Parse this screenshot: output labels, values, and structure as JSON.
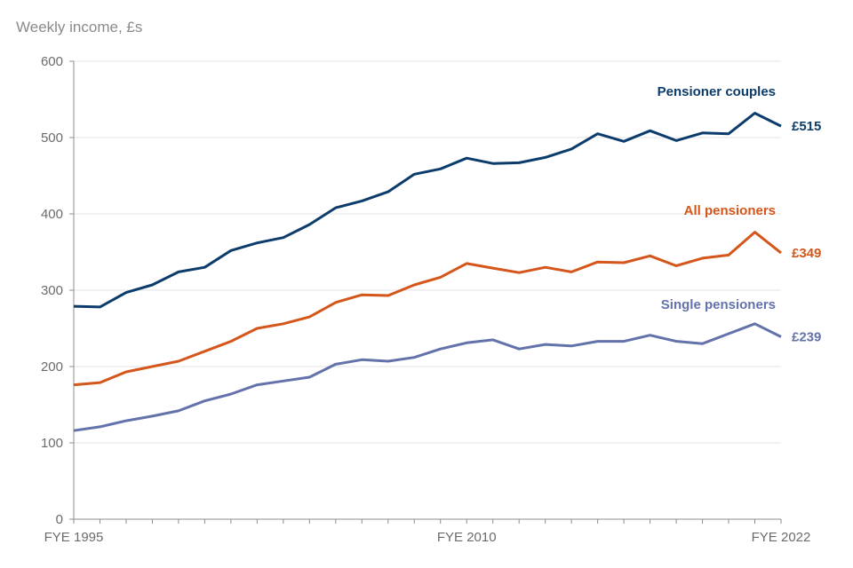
{
  "chart_data": {
    "type": "line",
    "ylabel": "Weekly income, £s",
    "ylim": [
      0,
      600
    ],
    "yticks": [
      0,
      100,
      200,
      300,
      400,
      500,
      600
    ],
    "x": [
      1995,
      1996,
      1997,
      1998,
      1999,
      2000,
      2001,
      2002,
      2003,
      2004,
      2005,
      2006,
      2007,
      2008,
      2009,
      2010,
      2011,
      2012,
      2013,
      2014,
      2015,
      2016,
      2017,
      2018,
      2019,
      2020,
      2021,
      2022
    ],
    "xtick_labels": [
      {
        "x": 1995,
        "label": "FYE 1995"
      },
      {
        "x": 2010,
        "label": "FYE 2010"
      },
      {
        "x": 2022,
        "label": "FYE 2022"
      }
    ],
    "grid": "horizontal",
    "series": [
      {
        "name": "Pensioner couples",
        "end_label": "£515",
        "color": "#0b3c6b",
        "values": [
          279,
          278,
          297,
          307,
          324,
          330,
          352,
          362,
          369,
          386,
          408,
          417,
          429,
          452,
          459,
          473,
          466,
          467,
          474,
          485,
          505,
          495,
          509,
          496,
          506,
          505,
          532,
          515
        ]
      },
      {
        "name": "All pensioners",
        "end_label": "£349",
        "color": "#d4561a",
        "values": [
          176,
          179,
          193,
          200,
          207,
          220,
          233,
          250,
          256,
          265,
          284,
          294,
          293,
          307,
          317,
          335,
          329,
          323,
          330,
          324,
          337,
          336,
          345,
          332,
          342,
          346,
          376,
          349
        ]
      },
      {
        "name": "Single pensioners",
        "end_label": "£239",
        "color": "#6372aa",
        "values": [
          116,
          121,
          129,
          135,
          142,
          155,
          164,
          176,
          181,
          186,
          203,
          209,
          207,
          212,
          223,
          231,
          235,
          223,
          229,
          227,
          233,
          233,
          241,
          233,
          230,
          243,
          256,
          239
        ]
      }
    ]
  }
}
